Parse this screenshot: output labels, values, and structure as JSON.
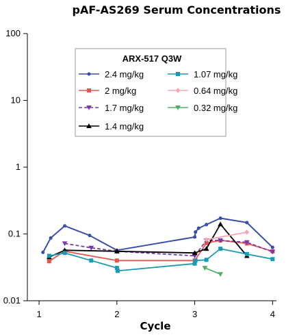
{
  "chart_data": {
    "type": "line",
    "title": "pAF-AS269 Serum Concentrations",
    "xlabel": "Cycle",
    "ylabel": "",
    "xlim": [
      0.85,
      4.05
    ],
    "ylim": [
      0.01,
      100
    ],
    "yscale": "log",
    "xticks": [
      "1",
      "2",
      "3",
      "4"
    ],
    "yticks": [
      "0.01",
      "0.1",
      "1",
      "10",
      "100"
    ],
    "grid": false,
    "legend": {
      "title": "ARX-517 Q3W",
      "placement": "top-center"
    },
    "series": [
      {
        "name": "2.4 mg/kg",
        "color": "#3a4ea8",
        "marker": "circle",
        "dash": false,
        "x": [
          1.05,
          1.15,
          1.33,
          1.65,
          2.0,
          3.0,
          3.01,
          3.05,
          3.15,
          3.33,
          3.67,
          4.0
        ],
        "y": [
          0.053,
          0.087,
          0.132,
          0.095,
          0.057,
          0.09,
          0.107,
          0.122,
          0.138,
          0.172,
          0.148,
          0.063
        ]
      },
      {
        "name": "2 mg/kg",
        "color": "#e8554e",
        "marker": "square",
        "dash": false,
        "x": [
          1.13,
          1.33,
          2.0,
          3.0,
          3.15,
          3.33,
          3.67,
          4.0
        ],
        "y": [
          0.039,
          0.055,
          0.04,
          0.04,
          0.073,
          0.08,
          0.072,
          0.055
        ]
      },
      {
        "name": "1.7 mg/kg",
        "color": "#7a3aa8",
        "marker": "triangle-down",
        "dash": true,
        "x": [
          1.33,
          1.67,
          2.0,
          3.0,
          3.15,
          3.33,
          3.67,
          4.0
        ],
        "y": [
          0.072,
          0.062,
          0.055,
          0.047,
          0.08,
          0.08,
          0.075,
          0.054
        ]
      },
      {
        "name": "1.4 mg/kg",
        "color": "#000000",
        "marker": "triangle-up",
        "dash": false,
        "x": [
          1.13,
          1.33,
          2.0,
          3.0,
          3.15,
          3.33,
          3.67
        ],
        "y": [
          0.045,
          0.057,
          0.055,
          0.052,
          0.06,
          0.14,
          0.047
        ]
      },
      {
        "name": "1.07 mg/kg",
        "color": "#1a9ab0",
        "marker": "square",
        "dash": false,
        "x": [
          1.13,
          1.33,
          1.67,
          2.0,
          2.01,
          3.0,
          3.01,
          3.15,
          3.33,
          3.67,
          4.0
        ],
        "y": [
          0.047,
          0.052,
          0.04,
          0.031,
          0.028,
          0.036,
          0.04,
          0.041,
          0.06,
          0.05,
          0.042
        ]
      },
      {
        "name": "0.64 mg/kg",
        "color": "#f4a6b0",
        "marker": "diamond",
        "dash": false,
        "x": [
          3.15,
          3.67
        ],
        "y": [
          0.082,
          0.106
        ]
      },
      {
        "name": "0.32 mg/kg",
        "color": "#4caf62",
        "marker": "triangle-down",
        "dash": false,
        "x": [
          3.13,
          3.33
        ],
        "y": [
          0.031,
          0.025
        ]
      }
    ]
  }
}
